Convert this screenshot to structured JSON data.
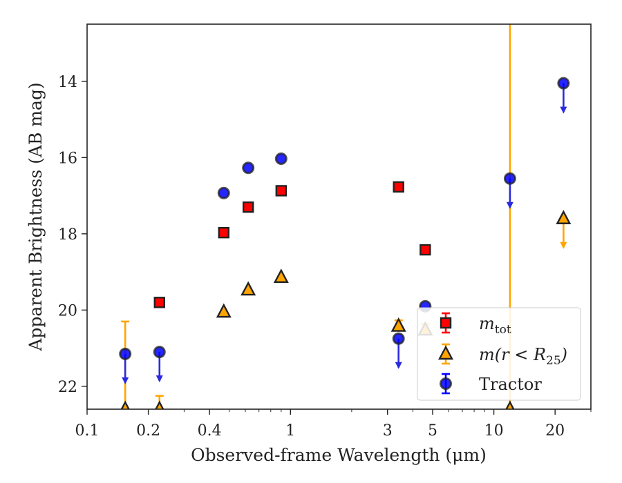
{
  "chart_data": {
    "type": "scatter",
    "xlabel": "Observed-frame Wavelength (μm)",
    "ylabel": "Apparent Brightness (AB mag)",
    "xscale": "log",
    "xlim": [
      0.1,
      30
    ],
    "ylim": [
      22.6,
      12.5
    ],
    "y_inverted": true,
    "x_ticks": [
      0.1,
      0.2,
      0.4,
      1,
      3,
      5,
      10,
      20
    ],
    "x_tick_labels": [
      "0.1",
      "0.2",
      "0.4",
      "1",
      "3",
      "5",
      "10",
      "20"
    ],
    "y_ticks": [
      14,
      16,
      18,
      20,
      22
    ],
    "y_tick_labels": [
      "14",
      "16",
      "18",
      "20",
      "22"
    ],
    "grid": false,
    "legend_position": "lower-right",
    "series": [
      {
        "name": "m_tot",
        "legend_label": "m",
        "legend_sub": "tot",
        "marker": "square",
        "color": "#ff0000",
        "edge_color": "#222222",
        "points": [
          {
            "x": 0.227,
            "y": 19.8
          },
          {
            "x": 0.47,
            "y": 17.97
          },
          {
            "x": 0.62,
            "y": 17.3
          },
          {
            "x": 0.9,
            "y": 16.87
          },
          {
            "x": 3.4,
            "y": 16.77
          },
          {
            "x": 4.6,
            "y": 18.42
          }
        ]
      },
      {
        "name": "m(r<R25)",
        "legend_label": "m(r < R",
        "legend_sub": "25",
        "legend_tail": ")",
        "marker": "triangle",
        "color": "#ffa500",
        "edge_color": "#222222",
        "points": [
          {
            "x": 0.154,
            "y": 22.6,
            "err_low": 2.3,
            "err_high": 0
          },
          {
            "x": 0.227,
            "y": 22.6,
            "err_low": 0.35,
            "err_high": 0
          },
          {
            "x": 0.47,
            "y": 20.05
          },
          {
            "x": 0.62,
            "y": 19.47
          },
          {
            "x": 0.9,
            "y": 19.14
          },
          {
            "x": 3.4,
            "y": 20.42,
            "err_low": 0.15,
            "err_high": 0.15
          },
          {
            "x": 4.6,
            "y": 20.52,
            "err_low": 0.15,
            "err_high": 0.15
          },
          {
            "x": 12.0,
            "y": 22.6,
            "err_low": 11,
            "err_high": 0
          },
          {
            "x": 22.0,
            "y": 17.6,
            "upper_limit": true
          }
        ]
      },
      {
        "name": "Tractor",
        "legend_label": "Tractor",
        "marker": "circle",
        "color": "#0000ff",
        "edge_color": "#222222",
        "points": [
          {
            "x": 0.154,
            "y": 21.15,
            "upper_limit": true
          },
          {
            "x": 0.227,
            "y": 21.1,
            "upper_limit": true
          },
          {
            "x": 0.47,
            "y": 16.93
          },
          {
            "x": 0.62,
            "y": 16.27
          },
          {
            "x": 0.9,
            "y": 16.03
          },
          {
            "x": 3.4,
            "y": 20.75,
            "upper_limit": true
          },
          {
            "x": 4.6,
            "y": 19.9
          },
          {
            "x": 12.0,
            "y": 16.55,
            "upper_limit": true
          },
          {
            "x": 22.0,
            "y": 14.05,
            "upper_limit": true
          }
        ]
      }
    ]
  }
}
